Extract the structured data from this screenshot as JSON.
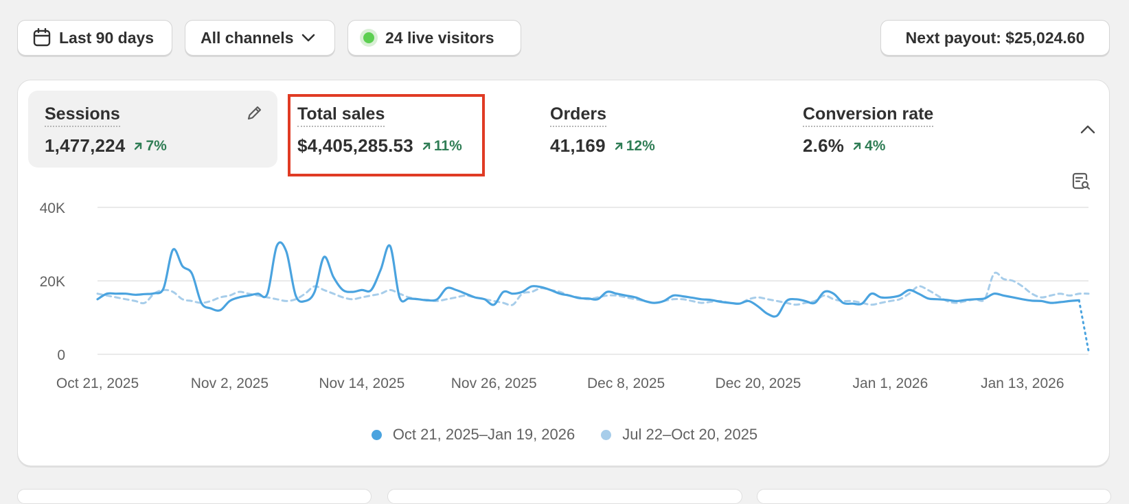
{
  "toolbar": {
    "date_range": "Last 90 days",
    "channels": "All channels",
    "live_visitors": "24 live visitors",
    "payout": "Next payout: $25,024.60"
  },
  "metrics": [
    {
      "label": "Sessions",
      "value": "1,477,224",
      "change": "7%"
    },
    {
      "label": "Total sales",
      "value": "$4,405,285.53",
      "change": "11%"
    },
    {
      "label": "Orders",
      "value": "41,169",
      "change": "12%"
    },
    {
      "label": "Conversion rate",
      "value": "2.6%",
      "change": "4%"
    }
  ],
  "colors": {
    "accent": "#4aa3df",
    "comparison": "#a7cdea",
    "positive": "#2f7d55",
    "highlight": "#e03b24"
  },
  "chart_data": {
    "type": "line",
    "y_tick_labels": [
      "0",
      "20K",
      "40K"
    ],
    "ylim": [
      0,
      40000
    ],
    "x_tick_labels": [
      "Oct 21, 2025",
      "Nov 2, 2025",
      "Nov 14, 2025",
      "Nov 26, 2025",
      "Dec 8, 2025",
      "Dec 20, 2025",
      "Jan 1, 2026",
      "Jan 13, 2026"
    ],
    "grid": true,
    "legend_position": "bottom",
    "series": [
      {
        "name": "Oct 21, 2025–Jan 19, 2026",
        "style": "solid",
        "values": [
          15000,
          16500,
          16500,
          16500,
          16200,
          16400,
          16600,
          18000,
          28500,
          24000,
          22000,
          14000,
          12500,
          12000,
          14500,
          15500,
          16000,
          16500,
          16500,
          29500,
          28000,
          16000,
          14500,
          17000,
          26500,
          21000,
          17500,
          17000,
          17500,
          17500,
          23000,
          29500,
          15500,
          15200,
          15000,
          14700,
          15000,
          18000,
          17500,
          16500,
          15500,
          15000,
          13500,
          17000,
          16500,
          17000,
          18500,
          18300,
          17500,
          16500,
          16000,
          15300,
          15200,
          15000,
          17000,
          16500,
          16000,
          15500,
          14500,
          14000,
          14500,
          16000,
          15800,
          15400,
          15000,
          14800,
          14300,
          14000,
          13800,
          14500,
          13000,
          11000,
          10500,
          14500,
          15000,
          14500,
          14000,
          17000,
          16500,
          14000,
          13800,
          13800,
          16500,
          15500,
          15500,
          16000,
          17500,
          16500,
          15200,
          15000,
          14800,
          14500,
          14800,
          15000,
          15200,
          16500,
          16000,
          15500,
          15000,
          14600,
          14500,
          14000,
          14200,
          14500,
          14700,
          1000
        ]
      },
      {
        "name": "Jul 22–Oct 20, 2025",
        "style": "dashed",
        "values": [
          16500,
          16000,
          15500,
          15000,
          14500,
          14000,
          16500,
          17500,
          17000,
          15000,
          14500,
          14000,
          14500,
          15500,
          16000,
          17000,
          16500,
          16000,
          15500,
          15000,
          14500,
          15000,
          16500,
          18500,
          17500,
          16500,
          15500,
          15000,
          15500,
          16000,
          16500,
          17500,
          16500,
          15500,
          15000,
          14800,
          14500,
          15000,
          15500,
          16000,
          15500,
          15000,
          14500,
          14000,
          13500,
          16500,
          17000,
          18000,
          17500,
          17000,
          16000,
          15500,
          15000,
          15500,
          16000,
          16000,
          15500,
          15000,
          14500,
          14000,
          14500,
          15000,
          15000,
          14500,
          14000,
          14300,
          14500,
          14000,
          13800,
          15000,
          15500,
          15000,
          14500,
          14000,
          13500,
          14000,
          14500,
          16000,
          15000,
          14500,
          14500,
          14000,
          13500,
          14000,
          14500,
          15000,
          16500,
          18500,
          17500,
          16000,
          14500,
          14000,
          14500,
          15000,
          15000,
          22000,
          20500,
          20000,
          18500,
          16500,
          15500,
          16000,
          16500,
          16000,
          16500,
          16500
        ]
      }
    ]
  }
}
